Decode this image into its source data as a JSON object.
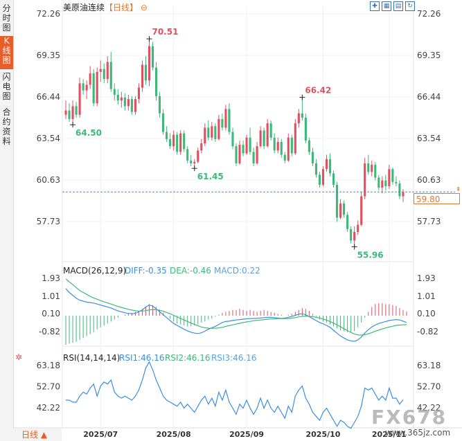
{
  "sidebar": {
    "tabs": [
      "分时图",
      "K线图",
      "闪电图",
      "合约资料"
    ],
    "active": 1
  },
  "header": {
    "title": "美原油连续",
    "period": "【日线】",
    "collapse_icon": "minus-circle-icon",
    "tools": [
      "crosshair-icon",
      "zoom-icon",
      "chart-icon",
      "refresh-icon"
    ]
  },
  "colors": {
    "up": "#e05060",
    "down": "#3cb878",
    "diff": "#3a8ee0",
    "dea": "#3cb878",
    "rsi": "#3a8ee0",
    "accent": "#e8762a"
  },
  "chart_data": [
    {
      "type": "candlestick",
      "title": "美原油连续",
      "period": "日线",
      "y_ticks": [
        "72.26",
        "69.35",
        "66.44",
        "63.54",
        "60.63",
        "57.73"
      ],
      "ylim": [
        54.5,
        72.26
      ],
      "x_ticks": [
        "2025/07",
        "2025/08",
        "2025/09",
        "2025/10",
        "2025/11"
      ],
      "last_price": "59.80",
      "annotations": [
        {
          "label": "70.51",
          "kind": "high",
          "index": 24
        },
        {
          "label": "64.50",
          "kind": "low",
          "index": 2
        },
        {
          "label": "61.45",
          "kind": "low",
          "index": 37
        },
        {
          "label": "66.42",
          "kind": "high",
          "index": 68
        },
        {
          "label": "55.96",
          "kind": "low",
          "index": 83
        }
      ],
      "candles": [
        {
          "o": 65.2,
          "h": 66.2,
          "l": 64.9,
          "c": 65.5
        },
        {
          "o": 65.5,
          "h": 66.0,
          "l": 64.7,
          "c": 64.9
        },
        {
          "o": 64.9,
          "h": 66.2,
          "l": 64.5,
          "c": 65.8
        },
        {
          "o": 65.8,
          "h": 66.1,
          "l": 65.0,
          "c": 65.2
        },
        {
          "o": 65.2,
          "h": 67.8,
          "l": 65.0,
          "c": 67.4
        },
        {
          "o": 67.4,
          "h": 67.7,
          "l": 66.6,
          "c": 66.9
        },
        {
          "o": 66.9,
          "h": 67.6,
          "l": 66.3,
          "c": 67.3
        },
        {
          "o": 67.3,
          "h": 68.6,
          "l": 67.0,
          "c": 68.1
        },
        {
          "o": 68.1,
          "h": 68.4,
          "l": 65.8,
          "c": 66.0
        },
        {
          "o": 66.0,
          "h": 68.5,
          "l": 65.8,
          "c": 68.2
        },
        {
          "o": 68.2,
          "h": 69.0,
          "l": 67.5,
          "c": 68.4
        },
        {
          "o": 68.4,
          "h": 68.8,
          "l": 67.4,
          "c": 67.7
        },
        {
          "o": 67.7,
          "h": 69.3,
          "l": 67.4,
          "c": 68.9
        },
        {
          "o": 68.9,
          "h": 69.6,
          "l": 66.8,
          "c": 67.0
        },
        {
          "o": 67.0,
          "h": 67.4,
          "l": 66.2,
          "c": 66.6
        },
        {
          "o": 66.6,
          "h": 67.0,
          "l": 65.9,
          "c": 66.2
        },
        {
          "o": 66.2,
          "h": 66.8,
          "l": 65.7,
          "c": 66.4
        },
        {
          "o": 66.4,
          "h": 66.7,
          "l": 65.5,
          "c": 65.8
        },
        {
          "o": 65.8,
          "h": 66.6,
          "l": 65.5,
          "c": 66.3
        },
        {
          "o": 66.3,
          "h": 66.5,
          "l": 65.2,
          "c": 65.4
        },
        {
          "o": 65.4,
          "h": 66.5,
          "l": 65.2,
          "c": 66.3
        },
        {
          "o": 66.3,
          "h": 67.4,
          "l": 66.0,
          "c": 67.1
        },
        {
          "o": 67.1,
          "h": 69.0,
          "l": 66.8,
          "c": 68.7
        },
        {
          "o": 68.7,
          "h": 69.3,
          "l": 67.3,
          "c": 67.6
        },
        {
          "o": 67.6,
          "h": 70.51,
          "l": 67.2,
          "c": 70.0
        },
        {
          "o": 70.0,
          "h": 70.3,
          "l": 68.3,
          "c": 68.5
        },
        {
          "o": 68.5,
          "h": 68.9,
          "l": 66.2,
          "c": 66.5
        },
        {
          "o": 66.5,
          "h": 66.8,
          "l": 65.0,
          "c": 65.3
        },
        {
          "o": 65.3,
          "h": 65.6,
          "l": 63.8,
          "c": 64.0
        },
        {
          "o": 64.0,
          "h": 64.4,
          "l": 63.3,
          "c": 63.5
        },
        {
          "o": 63.5,
          "h": 63.9,
          "l": 62.8,
          "c": 63.0
        },
        {
          "o": 63.0,
          "h": 64.1,
          "l": 62.7,
          "c": 63.8
        },
        {
          "o": 63.8,
          "h": 64.0,
          "l": 62.4,
          "c": 62.6
        },
        {
          "o": 62.6,
          "h": 64.1,
          "l": 62.4,
          "c": 63.9
        },
        {
          "o": 63.9,
          "h": 64.1,
          "l": 62.6,
          "c": 62.8
        },
        {
          "o": 62.8,
          "h": 63.0,
          "l": 61.8,
          "c": 62.0
        },
        {
          "o": 62.0,
          "h": 62.4,
          "l": 61.6,
          "c": 61.8
        },
        {
          "o": 61.8,
          "h": 62.1,
          "l": 61.45,
          "c": 61.9
        },
        {
          "o": 61.9,
          "h": 62.9,
          "l": 61.8,
          "c": 62.7
        },
        {
          "o": 62.7,
          "h": 63.5,
          "l": 62.5,
          "c": 63.2
        },
        {
          "o": 63.2,
          "h": 64.6,
          "l": 63.0,
          "c": 64.3
        },
        {
          "o": 64.3,
          "h": 64.8,
          "l": 63.4,
          "c": 63.6
        },
        {
          "o": 63.6,
          "h": 64.7,
          "l": 63.4,
          "c": 64.4
        },
        {
          "o": 64.4,
          "h": 64.6,
          "l": 63.3,
          "c": 63.5
        },
        {
          "o": 63.5,
          "h": 65.2,
          "l": 63.4,
          "c": 64.9
        },
        {
          "o": 64.9,
          "h": 65.3,
          "l": 64.1,
          "c": 64.3
        },
        {
          "o": 64.3,
          "h": 65.9,
          "l": 64.1,
          "c": 65.6
        },
        {
          "o": 65.6,
          "h": 66.0,
          "l": 63.8,
          "c": 64.0
        },
        {
          "o": 64.0,
          "h": 64.3,
          "l": 62.8,
          "c": 63.0
        },
        {
          "o": 63.0,
          "h": 63.2,
          "l": 61.6,
          "c": 61.8
        },
        {
          "o": 61.8,
          "h": 63.4,
          "l": 61.7,
          "c": 63.1
        },
        {
          "o": 63.1,
          "h": 63.4,
          "l": 62.3,
          "c": 62.5
        },
        {
          "o": 62.5,
          "h": 63.8,
          "l": 62.4,
          "c": 63.6
        },
        {
          "o": 63.6,
          "h": 64.3,
          "l": 62.4,
          "c": 62.6
        },
        {
          "o": 62.6,
          "h": 62.9,
          "l": 61.6,
          "c": 61.8
        },
        {
          "o": 61.8,
          "h": 63.3,
          "l": 61.7,
          "c": 63.0
        },
        {
          "o": 63.0,
          "h": 64.4,
          "l": 62.9,
          "c": 64.1
        },
        {
          "o": 64.1,
          "h": 64.3,
          "l": 62.8,
          "c": 63.0
        },
        {
          "o": 63.0,
          "h": 64.9,
          "l": 62.9,
          "c": 64.6
        },
        {
          "o": 64.6,
          "h": 64.8,
          "l": 63.4,
          "c": 63.6
        },
        {
          "o": 63.6,
          "h": 63.9,
          "l": 62.5,
          "c": 62.7
        },
        {
          "o": 62.7,
          "h": 63.6,
          "l": 62.5,
          "c": 63.3
        },
        {
          "o": 63.3,
          "h": 63.5,
          "l": 62.2,
          "c": 62.4
        },
        {
          "o": 62.4,
          "h": 62.6,
          "l": 61.8,
          "c": 62.0
        },
        {
          "o": 62.0,
          "h": 63.9,
          "l": 61.9,
          "c": 63.6
        },
        {
          "o": 63.6,
          "h": 63.8,
          "l": 62.3,
          "c": 62.5
        },
        {
          "o": 62.5,
          "h": 64.9,
          "l": 62.4,
          "c": 64.6
        },
        {
          "o": 64.6,
          "h": 65.6,
          "l": 64.3,
          "c": 65.3
        },
        {
          "o": 65.3,
          "h": 66.42,
          "l": 64.8,
          "c": 65.0
        },
        {
          "o": 65.0,
          "h": 65.3,
          "l": 63.2,
          "c": 63.4
        },
        {
          "o": 63.4,
          "h": 63.6,
          "l": 62.4,
          "c": 62.6
        },
        {
          "o": 62.6,
          "h": 62.9,
          "l": 61.6,
          "c": 61.8
        },
        {
          "o": 61.8,
          "h": 62.1,
          "l": 60.8,
          "c": 61.0
        },
        {
          "o": 61.0,
          "h": 61.2,
          "l": 60.1,
          "c": 60.3
        },
        {
          "o": 60.3,
          "h": 61.6,
          "l": 60.2,
          "c": 61.4
        },
        {
          "o": 61.4,
          "h": 62.4,
          "l": 61.2,
          "c": 62.1
        },
        {
          "o": 62.1,
          "h": 62.5,
          "l": 60.9,
          "c": 61.1
        },
        {
          "o": 61.1,
          "h": 61.3,
          "l": 60.1,
          "c": 60.3
        },
        {
          "o": 60.3,
          "h": 60.5,
          "l": 57.7,
          "c": 58.0
        },
        {
          "o": 58.0,
          "h": 59.3,
          "l": 57.9,
          "c": 59.0
        },
        {
          "o": 59.0,
          "h": 59.2,
          "l": 58.0,
          "c": 58.2
        },
        {
          "o": 58.2,
          "h": 58.4,
          "l": 57.0,
          "c": 57.2
        },
        {
          "o": 57.2,
          "h": 57.4,
          "l": 56.2,
          "c": 56.4
        },
        {
          "o": 56.4,
          "h": 57.4,
          "l": 55.96,
          "c": 57.0
        },
        {
          "o": 57.0,
          "h": 57.8,
          "l": 56.8,
          "c": 57.5
        },
        {
          "o": 57.5,
          "h": 59.8,
          "l": 57.4,
          "c": 59.5
        },
        {
          "o": 59.5,
          "h": 62.2,
          "l": 59.3,
          "c": 61.8
        },
        {
          "o": 61.8,
          "h": 62.4,
          "l": 61.0,
          "c": 61.2
        },
        {
          "o": 61.2,
          "h": 62.0,
          "l": 60.9,
          "c": 61.7
        },
        {
          "o": 61.7,
          "h": 61.9,
          "l": 60.6,
          "c": 60.8
        },
        {
          "o": 60.8,
          "h": 61.0,
          "l": 59.9,
          "c": 60.1
        },
        {
          "o": 60.1,
          "h": 60.9,
          "l": 59.7,
          "c": 60.6
        },
        {
          "o": 60.6,
          "h": 61.0,
          "l": 59.9,
          "c": 60.2
        },
        {
          "o": 60.2,
          "h": 61.7,
          "l": 60.0,
          "c": 61.4
        },
        {
          "o": 61.4,
          "h": 61.5,
          "l": 60.3,
          "c": 60.5
        },
        {
          "o": 60.5,
          "h": 60.9,
          "l": 60.2,
          "c": 60.4
        },
        {
          "o": 60.4,
          "h": 60.6,
          "l": 59.3,
          "c": 59.5
        },
        {
          "o": 59.5,
          "h": 60.0,
          "l": 59.1,
          "c": 59.8
        }
      ]
    },
    {
      "type": "bar+line",
      "title": "MACD(26,12,9)",
      "labels": {
        "diff": "DIFF:-0.35",
        "dea": "DEA:-0.46",
        "macd": "MACD:0.22"
      },
      "y_ticks": [
        "1.93",
        "1.01",
        "0.10",
        "-0.82"
      ],
      "ylim": [
        -1.6,
        2.1
      ],
      "macd": [
        -1.5,
        -1.45,
        -1.4,
        -1.35,
        -1.25,
        -1.15,
        -1.05,
        -0.95,
        -0.85,
        -0.7,
        -0.6,
        -0.5,
        -0.4,
        -0.3,
        -0.2,
        -0.1,
        0.0,
        0.05,
        0.1,
        0.15,
        0.2,
        0.25,
        0.35,
        0.45,
        0.6,
        0.55,
        0.45,
        0.3,
        0.15,
        0.0,
        -0.15,
        -0.3,
        -0.4,
        -0.45,
        -0.5,
        -0.55,
        -0.55,
        -0.5,
        -0.45,
        -0.35,
        -0.3,
        -0.2,
        -0.15,
        -0.05,
        0.05,
        0.15,
        0.2,
        0.25,
        0.3,
        0.3,
        0.35,
        0.3,
        0.25,
        0.3,
        0.25,
        0.2,
        0.25,
        0.3,
        0.25,
        0.2,
        0.15,
        0.1,
        0.05,
        0.0,
        0.05,
        0.1,
        0.2,
        0.3,
        0.4,
        0.35,
        0.25,
        0.1,
        -0.05,
        -0.2,
        -0.3,
        -0.35,
        -0.45,
        -0.55,
        -0.65,
        -0.75,
        -0.8,
        -0.85,
        -0.85,
        -0.8,
        -0.6,
        -0.35,
        -0.1,
        0.2,
        0.45,
        0.6,
        0.65,
        0.65,
        0.6,
        0.6,
        0.55,
        0.5,
        0.4,
        0.3,
        0.22
      ],
      "diff": [
        1.4,
        1.2,
        1.05,
        0.9,
        0.8,
        0.75,
        0.7,
        0.68,
        0.65,
        0.6,
        0.55,
        0.5,
        0.45,
        0.4,
        0.32,
        0.25,
        0.2,
        0.15,
        0.12,
        0.1,
        0.12,
        0.2,
        0.3,
        0.45,
        0.55,
        0.5,
        0.35,
        0.2,
        0.05,
        -0.1,
        -0.25,
        -0.4,
        -0.5,
        -0.6,
        -0.7,
        -0.78,
        -0.85,
        -0.9,
        -0.92,
        -0.88,
        -0.8,
        -0.7,
        -0.62,
        -0.55,
        -0.45,
        -0.35,
        -0.3,
        -0.28,
        -0.25,
        -0.22,
        -0.2,
        -0.18,
        -0.16,
        -0.15,
        -0.14,
        -0.13,
        -0.12,
        -0.1,
        -0.08,
        -0.08,
        -0.1,
        -0.12,
        -0.14,
        -0.12,
        -0.08,
        -0.03,
        0.02,
        0.08,
        0.1,
        0.05,
        -0.05,
        -0.15,
        -0.25,
        -0.35,
        -0.42,
        -0.5,
        -0.6,
        -0.75,
        -0.9,
        -1.05,
        -1.15,
        -1.25,
        -1.3,
        -1.32,
        -1.25,
        -1.1,
        -0.9,
        -0.72,
        -0.58,
        -0.48,
        -0.4,
        -0.35,
        -0.3,
        -0.25,
        -0.22,
        -0.2,
        -0.22,
        -0.28,
        -0.35
      ],
      "dea": [
        1.9,
        1.75,
        1.6,
        1.45,
        1.3,
        1.2,
        1.1,
        1.0,
        0.92,
        0.85,
        0.78,
        0.72,
        0.66,
        0.6,
        0.54,
        0.48,
        0.43,
        0.38,
        0.33,
        0.29,
        0.26,
        0.24,
        0.24,
        0.26,
        0.3,
        0.32,
        0.31,
        0.28,
        0.23,
        0.17,
        0.1,
        0.02,
        -0.06,
        -0.14,
        -0.22,
        -0.3,
        -0.38,
        -0.45,
        -0.52,
        -0.58,
        -0.62,
        -0.64,
        -0.65,
        -0.65,
        -0.63,
        -0.6,
        -0.55,
        -0.51,
        -0.47,
        -0.43,
        -0.39,
        -0.35,
        -0.32,
        -0.29,
        -0.26,
        -0.24,
        -0.22,
        -0.2,
        -0.18,
        -0.17,
        -0.16,
        -0.15,
        -0.15,
        -0.15,
        -0.14,
        -0.12,
        -0.1,
        -0.06,
        -0.03,
        -0.02,
        -0.03,
        -0.05,
        -0.08,
        -0.12,
        -0.17,
        -0.23,
        -0.3,
        -0.38,
        -0.47,
        -0.57,
        -0.67,
        -0.77,
        -0.86,
        -0.94,
        -0.99,
        -1.0,
        -0.98,
        -0.93,
        -0.87,
        -0.8,
        -0.74,
        -0.68,
        -0.63,
        -0.58,
        -0.54,
        -0.5,
        -0.48,
        -0.47,
        -0.46
      ]
    },
    {
      "type": "line",
      "title": "RSI(14,14,14)",
      "labels": {
        "rsi1": "RSI1:46.16",
        "rsi2": "RSI2:46.16",
        "rsi3": "RSI3:46.16"
      },
      "y_ticks": [
        "63.18",
        "52.70",
        "42.22"
      ],
      "ylim": [
        34,
        66
      ],
      "rsi": [
        46,
        46,
        45,
        45,
        48,
        50,
        49,
        52,
        54,
        48,
        53,
        55,
        54,
        56,
        50,
        48,
        47,
        48,
        47,
        46,
        48,
        51,
        56,
        62,
        65,
        61,
        56,
        52,
        48,
        46,
        45,
        44,
        43,
        45,
        42,
        44,
        42,
        40,
        43,
        46,
        48,
        44,
        47,
        43,
        50,
        46,
        51,
        45,
        42,
        39,
        44,
        42,
        46,
        42,
        39,
        42,
        47,
        42,
        46,
        42,
        40,
        43,
        40,
        37,
        43,
        40,
        48,
        51,
        53,
        47,
        44,
        40,
        38,
        36,
        40,
        42,
        39,
        36,
        33,
        36,
        35,
        33,
        32,
        35,
        38,
        43,
        52,
        51,
        52,
        49,
        46,
        48,
        46,
        52,
        47,
        47,
        44,
        46.16
      ]
    }
  ],
  "bottom": {
    "tab": "日线",
    "tab_arrow": "▲"
  },
  "watermark": {
    "text": "FX678",
    "url": "www.365jz.com"
  }
}
